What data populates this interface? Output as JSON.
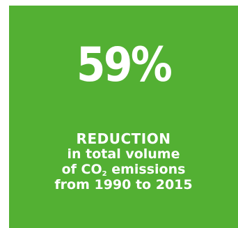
{
  "stat": {
    "value": "59%",
    "headline": "REDUCTION",
    "line2": "in total volume",
    "line3_prefix": "of CO",
    "line3_subscript": "2",
    "line3_suffix": " emissions",
    "line4": "from 1990 to 2015"
  },
  "colors": {
    "background": "#53b033",
    "text": "#ffffff"
  }
}
